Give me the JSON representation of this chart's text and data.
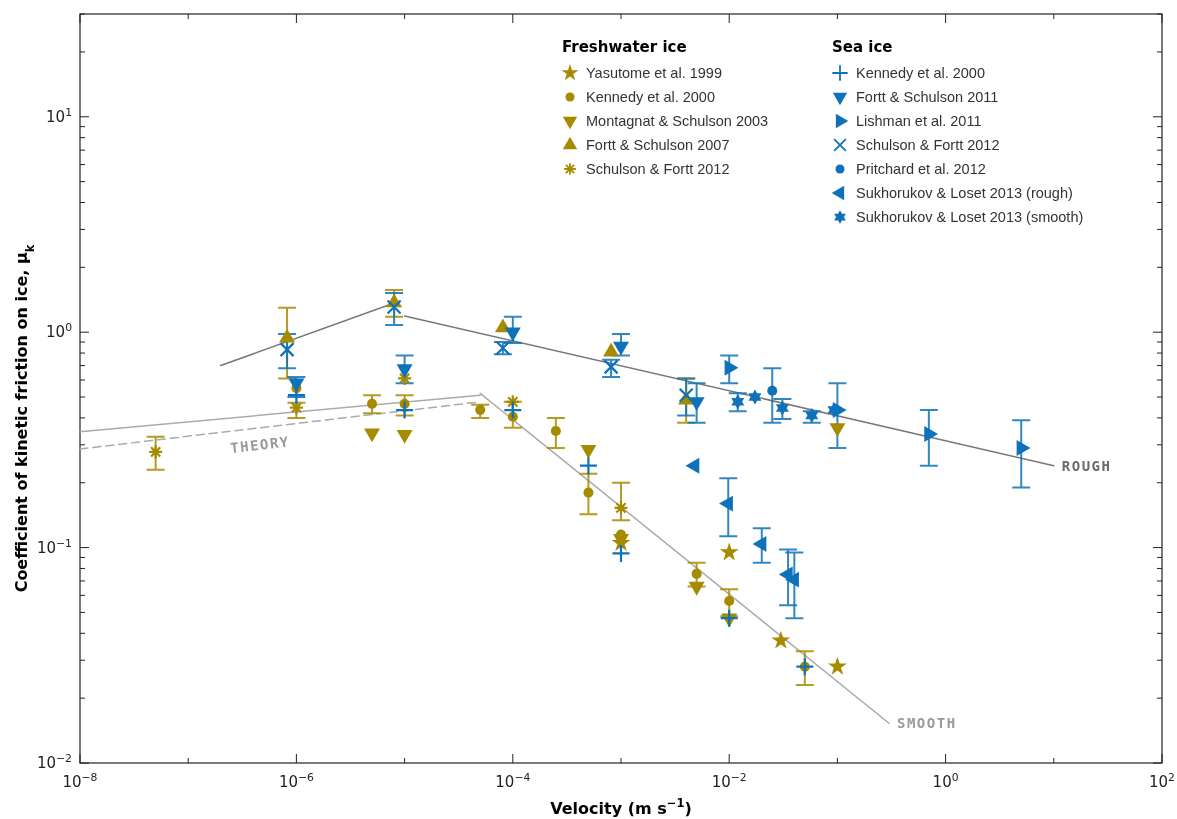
{
  "chart_data": {
    "type": "scatter",
    "xlabel": "Velocity (m s$^{−1}$)",
    "ylabel": "Coefficient of kinetic friction on ice, μ$_{k}$",
    "log": "xy",
    "grid": false,
    "legend": "top right",
    "legend_title": [
      "Freshwater ice",
      "Sea ice"
    ],
    "xlim": [
      1e-08,
      100
    ],
    "ylim": [
      0.01,
      30
    ],
    "xticks": [
      {
        "value": 1e-08,
        "label": "10$^{−8}$"
      },
      {
        "value": 1e-07,
        "label": null
      },
      {
        "value": 1e-06,
        "label": "10$^{−6}$"
      },
      {
        "value": 1e-05,
        "label": null
      },
      {
        "value": 0.0001,
        "label": "10$^{−4}$"
      },
      {
        "value": 0.001,
        "label": null
      },
      {
        "value": 0.01,
        "label": "10$^{−2}$"
      },
      {
        "value": 0.1,
        "label": null
      },
      {
        "value": 1,
        "label": "10$^{0}$"
      },
      {
        "value": 10,
        "label": null
      },
      {
        "value": 100,
        "label": "10$^{2}$"
      }
    ],
    "yticks": [
      {
        "value": 0.01,
        "label": "10$^{−2}$"
      },
      {
        "value": 0.02,
        "label": null
      },
      {
        "value": 0.03,
        "label": null
      },
      {
        "value": 0.04,
        "label": null
      },
      {
        "value": 0.05,
        "label": null
      },
      {
        "value": 0.06,
        "label": null
      },
      {
        "value": 0.07,
        "label": null
      },
      {
        "value": 0.08,
        "label": null
      },
      {
        "value": 0.09,
        "label": null
      },
      {
        "value": 0.1,
        "label": "10$^{−1}$"
      },
      {
        "value": 0.2,
        "label": null
      },
      {
        "value": 0.3,
        "label": null
      },
      {
        "value": 0.4,
        "label": null
      },
      {
        "value": 0.5,
        "label": null
      },
      {
        "value": 0.6,
        "label": null
      },
      {
        "value": 0.7,
        "label": null
      },
      {
        "value": 0.8,
        "label": null
      },
      {
        "value": 0.9,
        "label": null
      },
      {
        "value": 1,
        "label": "10$^{0}$"
      },
      {
        "value": 2,
        "label": null
      },
      {
        "value": 3,
        "label": null
      },
      {
        "value": 4,
        "label": null
      },
      {
        "value": 5,
        "label": null
      },
      {
        "value": 6,
        "label": null
      },
      {
        "value": 7,
        "label": null
      },
      {
        "value": 8,
        "label": null
      },
      {
        "value": 9,
        "label": null
      },
      {
        "value": 10,
        "label": "10$^{1}$"
      },
      {
        "value": 20,
        "label": null
      },
      {
        "value": 30,
        "label": null
      }
    ],
    "series": [
      {
        "type": "line",
        "color": "#aaaaaa",
        "line_style": "solid",
        "x": [
          1e-08,
          5e-05
        ],
        "values": [
          0.345,
          0.51
        ]
      },
      {
        "type": "line",
        "name": "THEORY",
        "color": "#aaaaaa",
        "line_style": "dashed",
        "x": [
          1e-08,
          5e-05
        ],
        "values": [
          0.287,
          0.475
        ]
      },
      {
        "type": "line",
        "color": "#777777",
        "line_style": "solid",
        "x": [
          2e-07,
          8.5e-06
        ],
        "values": [
          0.7,
          1.38
        ]
      },
      {
        "type": "line",
        "name": "ROUGH",
        "color": "#777777",
        "line_style": "solid",
        "x": [
          1e-05,
          10
        ],
        "values": [
          1.19,
          0.24
        ]
      },
      {
        "type": "line",
        "name": "SMOOTH",
        "color": "#aaaaaa",
        "line_style": "solid",
        "x": [
          5e-05,
          0.3
        ],
        "values": [
          0.52,
          0.0153
        ]
      },
      {
        "name": "Yasutome et al. 1999",
        "color": "#a68a00",
        "marker": "star",
        "x": [
          0.001,
          0.01,
          0.03,
          0.1
        ],
        "values": [
          0.105,
          0.095,
          0.037,
          0.028
        ]
      },
      {
        "name": "Kennedy et al. 2000",
        "color": "#a68a00",
        "marker": "circle",
        "x": [
          1e-06,
          5e-06,
          1e-05,
          5e-05,
          0.0001,
          0.00025,
          0.0005,
          0.001,
          0.005,
          0.01,
          0.05
        ],
        "values": [
          0.55,
          0.465,
          0.465,
          0.436,
          0.405,
          0.348,
          0.18,
          0.115,
          0.0755,
          0.0565,
          0.028
        ],
        "errors": [
          null,
          [
            0.42,
            0.51
          ],
          [
            0.41,
            0.51
          ],
          [
            0.4,
            0.46
          ],
          [
            0.36,
            0.475
          ],
          [
            0.29,
            0.4
          ],
          [
            0.143,
            0.22
          ],
          null,
          [
            0.066,
            0.085
          ],
          [
            0.048,
            0.064
          ],
          [
            0.023,
            0.033
          ]
        ]
      },
      {
        "name": "Montagnat & Schulson 2003",
        "color": "#a68a00",
        "marker": "triangle-down",
        "x": [
          5e-06,
          1e-05,
          0.0005,
          0.001,
          0.005,
          0.01,
          0.1
        ],
        "values": [
          0.34,
          0.335,
          0.285,
          0.11,
          0.066,
          0.047,
          0.36
        ]
      },
      {
        "name": "Fortt & Schulson 2007",
        "color": "#a68a00",
        "marker": "triangle",
        "x": [
          8.2e-07,
          8e-06,
          8.1e-05,
          0.00081,
          0.004
        ],
        "values": [
          0.94,
          1.37,
          1.05,
          0.81,
          0.485
        ],
        "errors": [
          [
            0.61,
            1.3
          ],
          [
            1.18,
            1.57
          ],
          null,
          null,
          [
            0.38,
            0.61
          ]
        ]
      },
      {
        "name": "Schulson & Fortt 2012",
        "color": "#a68a00",
        "marker": "cross",
        "x": [
          5e-08,
          1e-06,
          1e-05,
          0.0001,
          0.001
        ],
        "values": [
          0.278,
          0.446,
          0.61,
          0.475,
          0.153
        ],
        "errors": [
          [
            0.23,
            0.327
          ],
          [
            0.4,
            0.47
          ],
          null,
          null,
          [
            0.134,
            0.2
          ]
        ]
      },
      {
        "name": "Kennedy et al. 2000",
        "color": "#0d72b9",
        "marker": "plus",
        "x": [
          1e-06,
          1e-05,
          0.0001,
          0.0005,
          0.001,
          0.01,
          0.05
        ],
        "values": [
          0.51,
          0.435,
          0.435,
          0.24,
          0.094,
          0.047,
          0.028
        ]
      },
      {
        "name": "Fortt & Schulson 2011",
        "color": "#0d72b9",
        "marker": "triangle-down",
        "x": [
          1e-06,
          1e-05,
          0.0001,
          0.001,
          0.005
        ],
        "values": [
          0.58,
          0.675,
          1.0,
          0.86,
          0.475
        ],
        "errors": [
          [
            0.5,
            0.62
          ],
          [
            0.58,
            0.78
          ],
          [
            0.89,
            1.18
          ],
          [
            0.78,
            0.98
          ],
          [
            0.38,
            0.58
          ]
        ]
      },
      {
        "name": "Lishman et al. 2011",
        "color": "#0d72b9",
        "marker": "triangle-right",
        "x": [
          0.01,
          0.1,
          0.7,
          5
        ],
        "values": [
          0.684,
          0.435,
          0.337,
          0.29
        ],
        "errors": [
          [
            0.58,
            0.78
          ],
          [
            0.29,
            0.58
          ],
          [
            0.24,
            0.435
          ],
          [
            0.19,
            0.39
          ]
        ]
      },
      {
        "name": "Schulson & Fortt 2012",
        "color": "#0d72b9",
        "marker": "x",
        "x": [
          8.2e-07,
          8e-06,
          8.1e-05,
          0.00081,
          0.004
        ],
        "values": [
          0.83,
          1.31,
          0.845,
          0.69,
          0.51
        ],
        "errors": [
          [
            0.68,
            0.98
          ],
          [
            1.08,
            1.52
          ],
          [
            0.79,
            0.9
          ],
          [
            0.62,
            0.745
          ],
          [
            0.41,
            0.61
          ]
        ]
      },
      {
        "name": "Pritchard et al. 2012",
        "color": "#0d72b9",
        "marker": "circle",
        "x": [
          0.025
        ],
        "values": [
          0.535
        ],
        "errors": [
          [
            0.38,
            0.68
          ]
        ]
      },
      {
        "name": "Sukhorukov & Loset 2013 (rough)",
        "color": "#0d72b9",
        "marker": "triangle-left",
        "x": [
          0.0048,
          0.0098,
          0.02,
          0.035,
          0.04
        ],
        "values": [
          0.24,
          0.16,
          0.104,
          0.075,
          0.071
        ],
        "errors": [
          null,
          [
            0.113,
            0.21
          ],
          [
            0.085,
            0.123
          ],
          [
            0.054,
            0.098
          ],
          [
            0.047,
            0.095
          ]
        ]
      },
      {
        "name": "Sukhorukov & Loset 2013 (smooth)",
        "color": "#0d72b9",
        "marker": "star6",
        "x": [
          0.012,
          0.0173,
          0.031,
          0.058,
          0.093
        ],
        "values": [
          0.475,
          0.5,
          0.445,
          0.41,
          0.435
        ],
        "errors": [
          [
            0.43,
            0.52
          ],
          null,
          [
            0.395,
            0.49
          ],
          [
            0.38,
            0.43
          ],
          null
        ]
      }
    ]
  }
}
